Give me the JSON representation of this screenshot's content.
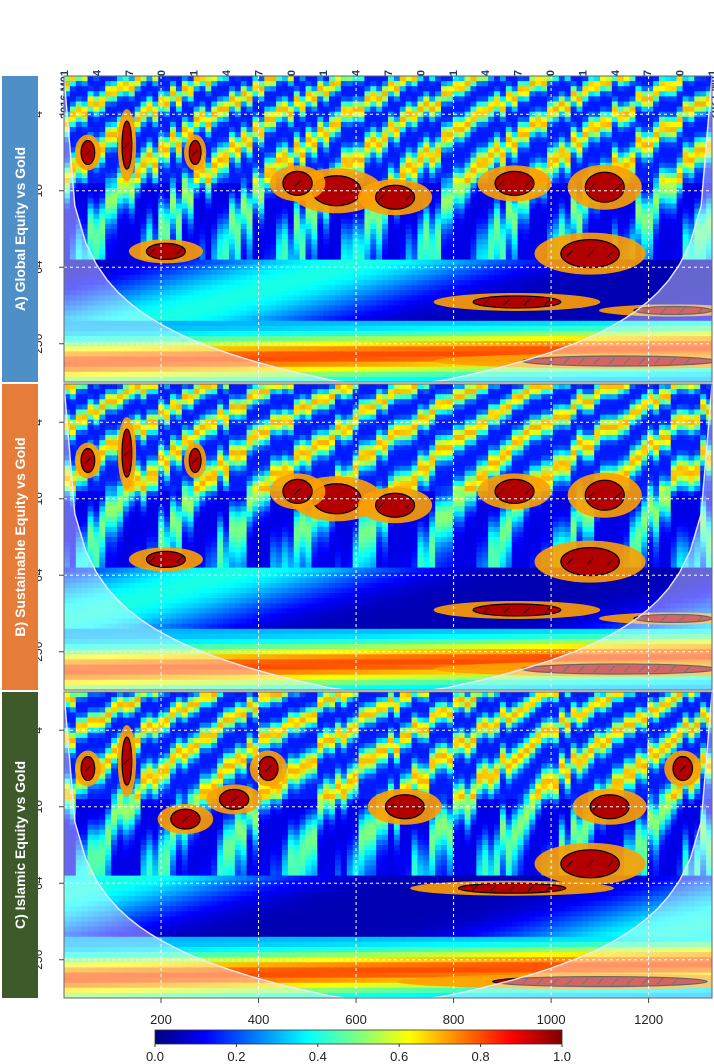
{
  "chart_data": {
    "type": "heatmap",
    "description_kind": "wavelet coherence",
    "top_date_labels": [
      "2016 M01",
      "2016 M04",
      "2016 M07",
      "2016 M10",
      "2017 M01",
      "2017 M04",
      "2017 M07",
      "2017 M10",
      "2018 M01",
      "2018 M04",
      "2018 M07",
      "2018 M10",
      "2019 M01",
      "2019 M04",
      "2019 M07",
      "2019 M10",
      "2020 M01",
      "2020 M04",
      "2020 M07",
      "2020 M10",
      "2021 M01"
    ],
    "x_ticks": [
      200,
      400,
      600,
      800,
      1000,
      1200
    ],
    "xlim": [
      1,
      1330
    ],
    "y_ticks": [
      4,
      16,
      64,
      256
    ],
    "y_scale": "log2",
    "ylim": [
      2,
      512
    ],
    "colorbar": {
      "ticks": [
        "0.0",
        "0.2",
        "0.4",
        "0.6",
        "0.8",
        "1.0"
      ],
      "colors": [
        "#00007f",
        "#0000ff",
        "#007fff",
        "#00ffff",
        "#7fff7f",
        "#ffff00",
        "#ff7f00",
        "#ff0000",
        "#7f0000"
      ]
    },
    "panels": [
      {
        "label": "A) Global Equity vs Gold",
        "tab_color": "#4f8fc7",
        "blobs": [
          [
            210,
            48,
            40,
            8
          ],
          [
            270,
            8,
            12,
            12
          ],
          [
            130,
            7,
            10,
            24
          ],
          [
            560,
            16,
            50,
            15
          ],
          [
            680,
            18,
            40,
            12
          ],
          [
            925,
            14,
            40,
            12
          ],
          [
            1080,
            50,
            60,
            14
          ],
          [
            1110,
            15,
            40,
            15
          ],
          [
            930,
            120,
            90,
            6
          ],
          [
            1140,
            350,
            200,
            5
          ],
          [
            1250,
            140,
            80,
            4
          ],
          [
            50,
            8,
            14,
            12
          ],
          [
            480,
            14,
            30,
            12
          ]
        ]
      },
      {
        "label": "B) Sustainable Equity vs Gold",
        "tab_color": "#e57c3a",
        "blobs": [
          [
            210,
            48,
            40,
            8
          ],
          [
            270,
            8,
            12,
            12
          ],
          [
            130,
            7,
            10,
            24
          ],
          [
            560,
            16,
            50,
            15
          ],
          [
            680,
            18,
            40,
            12
          ],
          [
            925,
            14,
            40,
            12
          ],
          [
            1080,
            50,
            60,
            14
          ],
          [
            1110,
            15,
            40,
            15
          ],
          [
            930,
            120,
            90,
            6
          ],
          [
            1140,
            350,
            200,
            5
          ],
          [
            1250,
            140,
            80,
            4
          ],
          [
            50,
            8,
            14,
            12
          ],
          [
            480,
            14,
            30,
            12
          ]
        ]
      },
      {
        "label": "C) Islamic Equity vs Gold",
        "tab_color": "#3e5a2a",
        "blobs": [
          [
            250,
            20,
            30,
            10
          ],
          [
            130,
            7,
            10,
            24
          ],
          [
            420,
            8,
            20,
            12
          ],
          [
            700,
            16,
            40,
            12
          ],
          [
            1080,
            45,
            60,
            14
          ],
          [
            1120,
            16,
            40,
            12
          ],
          [
            920,
            70,
            110,
            5
          ],
          [
            1100,
            380,
            220,
            5
          ],
          [
            1270,
            8,
            20,
            12
          ],
          [
            50,
            8,
            14,
            12
          ],
          [
            350,
            14,
            30,
            10
          ]
        ]
      }
    ]
  }
}
